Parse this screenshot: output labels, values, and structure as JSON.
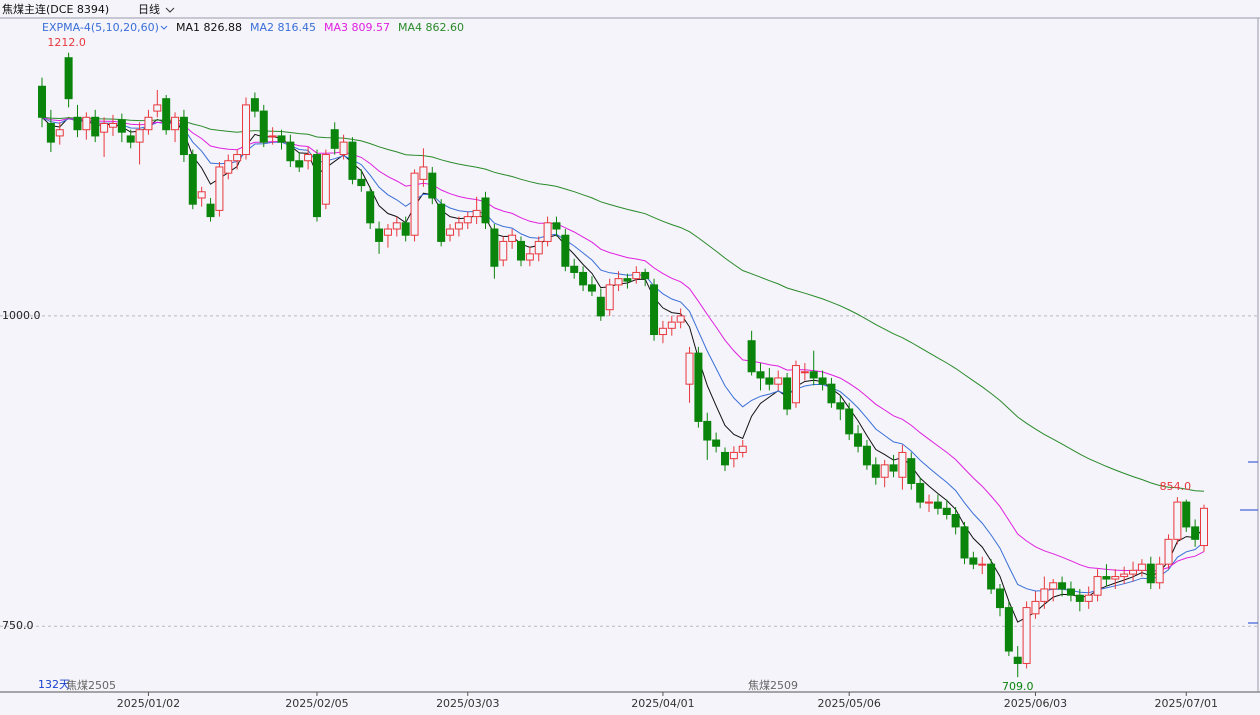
{
  "chart_data": {
    "type": "candlestick",
    "title": "焦煤主连(DCE 8394)",
    "period_label": "日线",
    "indicator": "EXPMA-4(5,10,20,60)",
    "ema_lines": [
      {
        "name": "MA1 826.88",
        "period": 5,
        "color": "#111111"
      },
      {
        "name": "MA2 816.45",
        "period": 10,
        "color": "#3a6fd8"
      },
      {
        "name": "MA3 809.57",
        "period": 20,
        "color": "#e020e0"
      },
      {
        "name": "MA4 862.60",
        "period": 60,
        "color": "#2a8a2a"
      }
    ],
    "up_color": "#e8383d",
    "down_color": "#0a840a",
    "day_count": "132天",
    "contracts": [
      "焦煤2505",
      "焦煤2509"
    ],
    "annotations": [
      {
        "value": 1212,
        "label": "1212.0"
      },
      {
        "value": 854,
        "label": "854.0"
      },
      {
        "value": 709,
        "label": "709.0"
      }
    ],
    "ylim": [
      697,
      1240
    ],
    "yticks": [
      {
        "value": 1000,
        "label": "1000.0"
      },
      {
        "value": 750,
        "label": "750.0"
      }
    ],
    "grid": true,
    "categories": [
      null,
      null,
      null,
      null,
      null,
      null,
      null,
      null,
      null,
      null,
      null,
      null,
      "2025/01/02",
      null,
      null,
      null,
      null,
      null,
      null,
      null,
      null,
      null,
      null,
      null,
      null,
      null,
      null,
      null,
      null,
      null,
      null,
      "2025/02/05",
      null,
      null,
      null,
      null,
      null,
      null,
      null,
      null,
      null,
      null,
      null,
      null,
      null,
      null,
      null,
      null,
      "2025/03/03",
      null,
      null,
      null,
      null,
      null,
      null,
      null,
      null,
      null,
      null,
      null,
      null,
      null,
      null,
      null,
      null,
      null,
      null,
      null,
      null,
      null,
      "2025/04/01",
      null,
      null,
      null,
      null,
      null,
      null,
      null,
      null,
      null,
      null,
      null,
      null,
      null,
      null,
      null,
      null,
      null,
      null,
      null,
      null,
      "2025/05/06",
      null,
      null,
      null,
      null,
      null,
      null,
      null,
      null,
      null,
      null,
      null,
      null,
      null,
      null,
      null,
      null,
      null,
      null,
      null,
      null,
      "2025/06/03",
      null,
      null,
      null,
      null,
      null,
      null,
      null,
      null,
      null,
      null,
      null,
      null,
      null,
      null,
      null,
      null,
      "2025/07/01",
      null,
      null
    ],
    "candles": [
      [
        1185,
        1192,
        1152,
        1160
      ],
      [
        1155,
        1166,
        1132,
        1140
      ],
      [
        1145,
        1156,
        1138,
        1150
      ],
      [
        1208,
        1212,
        1168,
        1175
      ],
      [
        1160,
        1170,
        1144,
        1150
      ],
      [
        1150,
        1164,
        1142,
        1160
      ],
      [
        1160,
        1166,
        1140,
        1145
      ],
      [
        1148,
        1160,
        1128,
        1155
      ],
      [
        1152,
        1162,
        1145,
        1155
      ],
      [
        1158,
        1163,
        1140,
        1148
      ],
      [
        1145,
        1150,
        1135,
        1140
      ],
      [
        1140,
        1156,
        1122,
        1150
      ],
      [
        1150,
        1166,
        1146,
        1160
      ],
      [
        1165,
        1182,
        1160,
        1170
      ],
      [
        1175,
        1178,
        1146,
        1150
      ],
      [
        1150,
        1164,
        1140,
        1160
      ],
      [
        1160,
        1166,
        1124,
        1130
      ],
      [
        1130,
        1134,
        1086,
        1090
      ],
      [
        1095,
        1104,
        1088,
        1100
      ],
      [
        1090,
        1095,
        1076,
        1080
      ],
      [
        1085,
        1124,
        1080,
        1120
      ],
      [
        1115,
        1130,
        1110,
        1125
      ],
      [
        1125,
        1134,
        1118,
        1130
      ],
      [
        1130,
        1176,
        1126,
        1170
      ],
      [
        1175,
        1180,
        1160,
        1165
      ],
      [
        1165,
        1170,
        1136,
        1140
      ],
      [
        1145,
        1152,
        1138,
        1145
      ],
      [
        1145,
        1150,
        1134,
        1140
      ],
      [
        1140,
        1146,
        1120,
        1125
      ],
      [
        1125,
        1132,
        1116,
        1120
      ],
      [
        1125,
        1136,
        1118,
        1130
      ],
      [
        1130,
        1134,
        1076,
        1080
      ],
      [
        1090,
        1134,
        1086,
        1130
      ],
      [
        1150,
        1156,
        1130,
        1135
      ],
      [
        1130,
        1146,
        1126,
        1140
      ],
      [
        1140,
        1144,
        1106,
        1110
      ],
      [
        1110,
        1118,
        1100,
        1105
      ],
      [
        1100,
        1104,
        1070,
        1075
      ],
      [
        1070,
        1076,
        1050,
        1060
      ],
      [
        1065,
        1074,
        1055,
        1070
      ],
      [
        1070,
        1080,
        1064,
        1075
      ],
      [
        1075,
        1080,
        1060,
        1065
      ],
      [
        1065,
        1118,
        1060,
        1115
      ],
      [
        1110,
        1135,
        1104,
        1120
      ],
      [
        1115,
        1120,
        1090,
        1095
      ],
      [
        1090,
        1094,
        1056,
        1060
      ],
      [
        1065,
        1074,
        1060,
        1070
      ],
      [
        1070,
        1080,
        1064,
        1075
      ],
      [
        1075,
        1084,
        1070,
        1080
      ],
      [
        1080,
        1096,
        1074,
        1085
      ],
      [
        1095,
        1100,
        1070,
        1075
      ],
      [
        1070,
        1074,
        1030,
        1040
      ],
      [
        1045,
        1064,
        1040,
        1060
      ],
      [
        1060,
        1070,
        1054,
        1065
      ],
      [
        1060,
        1064,
        1040,
        1045
      ],
      [
        1045,
        1056,
        1040,
        1050
      ],
      [
        1050,
        1064,
        1044,
        1060
      ],
      [
        1060,
        1080,
        1056,
        1075
      ],
      [
        1075,
        1080,
        1064,
        1070
      ],
      [
        1065,
        1070,
        1036,
        1040
      ],
      [
        1040,
        1046,
        1030,
        1035
      ],
      [
        1035,
        1040,
        1020,
        1025
      ],
      [
        1025,
        1032,
        1016,
        1020
      ],
      [
        1015,
        1022,
        996,
        1000
      ],
      [
        1005,
        1030,
        1000,
        1025
      ],
      [
        1025,
        1036,
        1020,
        1030
      ],
      [
        1030,
        1034,
        1022,
        1028
      ],
      [
        1030,
        1040,
        1026,
        1035
      ],
      [
        1035,
        1038,
        1024,
        1030
      ],
      [
        1025,
        1030,
        980,
        985
      ],
      [
        985,
        996,
        978,
        990
      ],
      [
        990,
        1000,
        984,
        995
      ],
      [
        995,
        1006,
        990,
        1000
      ],
      [
        945,
        975,
        930,
        970
      ],
      [
        970,
        975,
        910,
        915
      ],
      [
        915,
        922,
        884,
        900
      ],
      [
        900,
        906,
        890,
        895
      ],
      [
        890,
        894,
        875,
        880
      ],
      [
        885,
        895,
        878,
        890
      ],
      [
        890,
        900,
        886,
        895
      ],
      [
        980,
        988,
        952,
        955
      ],
      [
        955,
        962,
        940,
        950
      ],
      [
        950,
        958,
        940,
        945
      ],
      [
        945,
        956,
        940,
        950
      ],
      [
        950,
        954,
        920,
        925
      ],
      [
        930,
        964,
        926,
        960
      ],
      [
        955,
        962,
        948,
        955
      ],
      [
        955,
        972,
        944,
        950
      ],
      [
        950,
        956,
        940,
        945
      ],
      [
        945,
        950,
        926,
        930
      ],
      [
        930,
        936,
        916,
        925
      ],
      [
        925,
        930,
        900,
        905
      ],
      [
        905,
        912,
        890,
        895
      ],
      [
        895,
        900,
        876,
        880
      ],
      [
        880,
        886,
        864,
        870
      ],
      [
        870,
        884,
        862,
        880
      ],
      [
        880,
        888,
        870,
        875
      ],
      [
        870,
        896,
        860,
        890
      ],
      [
        885,
        890,
        860,
        865
      ],
      [
        865,
        870,
        845,
        850
      ],
      [
        850,
        856,
        842,
        850
      ],
      [
        850,
        856,
        840,
        845
      ],
      [
        845,
        852,
        836,
        840
      ],
      [
        840,
        846,
        824,
        830
      ],
      [
        830,
        834,
        800,
        805
      ],
      [
        805,
        810,
        796,
        800
      ],
      [
        800,
        806,
        792,
        800
      ],
      [
        800,
        804,
        776,
        780
      ],
      [
        780,
        784,
        758,
        765
      ],
      [
        765,
        770,
        726,
        730
      ],
      [
        725,
        734,
        709,
        720
      ],
      [
        720,
        770,
        716,
        765
      ],
      [
        760,
        778,
        756,
        770
      ],
      [
        770,
        790,
        764,
        780
      ],
      [
        780,
        788,
        770,
        785
      ],
      [
        785,
        790,
        774,
        780
      ],
      [
        780,
        786,
        770,
        775
      ],
      [
        775,
        780,
        762,
        770
      ],
      [
        770,
        782,
        764,
        775
      ],
      [
        775,
        796,
        770,
        790
      ],
      [
        790,
        800,
        782,
        788
      ],
      [
        788,
        796,
        780,
        790
      ],
      [
        790,
        798,
        784,
        792
      ],
      [
        792,
        802,
        786,
        795
      ],
      [
        795,
        804,
        790,
        800
      ],
      [
        800,
        806,
        780,
        785
      ],
      [
        785,
        806,
        780,
        800
      ],
      [
        800,
        824,
        796,
        820
      ],
      [
        820,
        854,
        816,
        850
      ],
      [
        850,
        852,
        826,
        830
      ],
      [
        830,
        836,
        814,
        820
      ],
      [
        815,
        848,
        810,
        845
      ]
    ]
  }
}
